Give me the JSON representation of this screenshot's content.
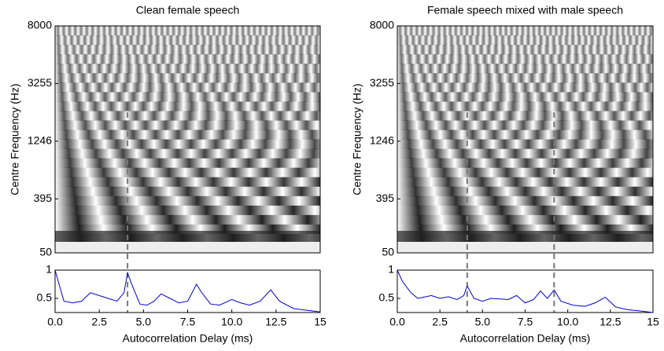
{
  "chart_data": [
    {
      "type": "correlogram",
      "title": "Clean female speech",
      "ylabel": "Centre Frequency (Hz)",
      "ylim": [
        50,
        8000
      ],
      "yticks": [
        50,
        395,
        1246,
        3255,
        8000
      ],
      "yscale": "erb",
      "xlim": [
        0,
        15
      ],
      "markers": [
        4.1
      ]
    },
    {
      "type": "line",
      "xlabel": "Autocorrelation Delay (ms)",
      "color": "#0000cc",
      "x": [
        0,
        0.5,
        1,
        1.5,
        2,
        2.5,
        3,
        3.5,
        3.9,
        4.1,
        4.4,
        4.8,
        5.2,
        5.6,
        6,
        6.5,
        7,
        7.5,
        8,
        8.3,
        8.8,
        9.3,
        10,
        10.5,
        11,
        11.6,
        12.2,
        12.7,
        13.5,
        14.5,
        15
      ],
      "values": [
        1,
        0.45,
        0.42,
        0.45,
        0.6,
        0.55,
        0.5,
        0.45,
        0.6,
        0.95,
        0.7,
        0.4,
        0.38,
        0.45,
        0.58,
        0.5,
        0.42,
        0.45,
        0.75,
        0.6,
        0.4,
        0.38,
        0.48,
        0.42,
        0.38,
        0.45,
        0.65,
        0.45,
        0.32,
        0.28,
        0.26
      ],
      "xlim": [
        0,
        15
      ],
      "xticks": [
        {
          "value": 0,
          "label": "0.0"
        },
        {
          "value": 2.5,
          "label": "2.5"
        },
        {
          "value": 5,
          "label": "5.0"
        },
        {
          "value": 7.5,
          "label": "7.5"
        },
        {
          "value": 10,
          "label": "10.0"
        },
        {
          "value": 12.5,
          "label": "12.5"
        },
        15
      ],
      "ylim": [
        0.25,
        1
      ],
      "yticks": [
        0.5,
        1
      ]
    },
    {
      "type": "correlogram",
      "title": "Female speech mixed with male speech",
      "ylabel": "Centre Frequency (Hz)",
      "ylim": [
        50,
        8000
      ],
      "yticks": [
        50,
        395,
        1246,
        3255,
        8000
      ],
      "yscale": "erb",
      "xlim": [
        0,
        15
      ],
      "markers": [
        4.1,
        9.2
      ]
    },
    {
      "type": "line",
      "xlabel": "Autocorrelation Delay (ms)",
      "color": "#0000cc",
      "x": [
        0,
        0.3,
        0.8,
        1.2,
        2,
        2.5,
        3,
        3.5,
        3.9,
        4.1,
        4.5,
        5,
        5.5,
        6.5,
        7,
        7.5,
        8,
        8.4,
        8.8,
        9.2,
        9.6,
        10.3,
        11,
        11.6,
        12.2,
        12.8,
        13.5,
        14.2,
        15
      ],
      "values": [
        1,
        0.8,
        0.6,
        0.5,
        0.55,
        0.5,
        0.53,
        0.48,
        0.55,
        0.72,
        0.5,
        0.45,
        0.5,
        0.48,
        0.55,
        0.42,
        0.48,
        0.63,
        0.5,
        0.65,
        0.45,
        0.38,
        0.36,
        0.42,
        0.52,
        0.35,
        0.3,
        0.28,
        0.25
      ],
      "xlim": [
        0,
        15
      ],
      "xticks": [
        {
          "value": 0,
          "label": "0.0"
        },
        {
          "value": 2.5,
          "label": "2.5"
        },
        {
          "value": 5,
          "label": "5.0"
        },
        {
          "value": 7.5,
          "label": "7.5"
        },
        {
          "value": 10,
          "label": "10.0"
        },
        {
          "value": 12.5,
          "label": "12.5"
        },
        15
      ],
      "ylim": [
        0.25,
        1
      ],
      "yticks": [
        0.5,
        1
      ]
    }
  ]
}
